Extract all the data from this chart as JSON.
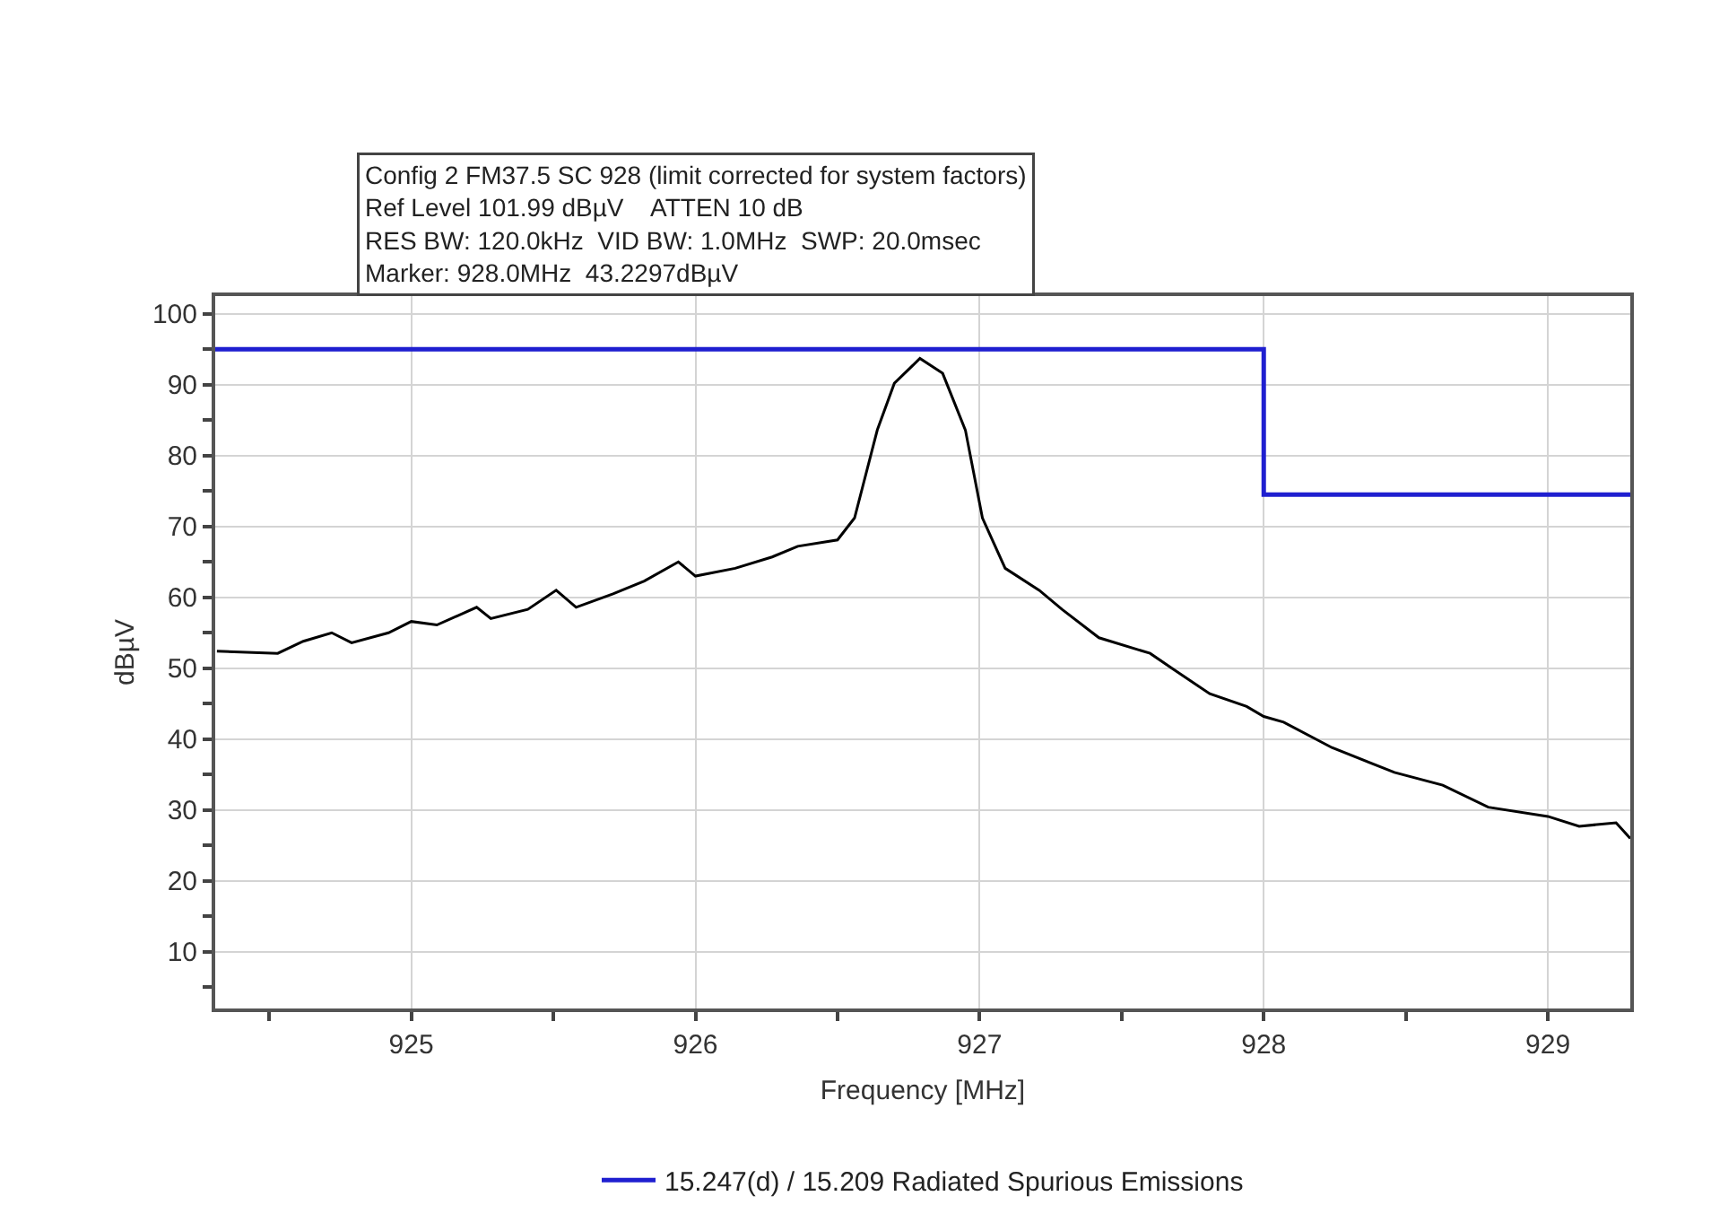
{
  "chart_data": {
    "type": "line",
    "annotations": [
      "Config 2 FM37.5 SC 928 (limit corrected for system factors)",
      "Ref Level 101.99 dBµV    ATTEN 10 dB",
      "RES BW: 120.0kHz  VID BW: 1.0MHz  SWP: 20.0msec",
      "Marker: 928.0MHz  43.2297dBµV"
    ],
    "xlabel": "Frequency [MHz]",
    "ylabel": "dBµV",
    "xlim": [
      924.31,
      929.29
    ],
    "ylim": [
      2,
      102.5
    ],
    "xticks": [
      {
        "value": 924.5,
        "label": null
      },
      925,
      {
        "value": 925.5,
        "label": null
      },
      926,
      {
        "value": 926.5,
        "label": null
      },
      927,
      {
        "value": 927.5,
        "label": null
      },
      928,
      {
        "value": 928.5,
        "label": null
      },
      929
    ],
    "yticks": [
      {
        "value": 5,
        "label": null
      },
      10,
      {
        "value": 15,
        "label": null
      },
      20,
      {
        "value": 25,
        "label": null
      },
      30,
      {
        "value": 35,
        "label": null
      },
      40,
      {
        "value": 45,
        "label": null
      },
      50,
      {
        "value": 55,
        "label": null
      },
      60,
      {
        "value": 65,
        "label": null
      },
      70,
      {
        "value": 75,
        "label": null
      },
      80,
      {
        "value": 85,
        "label": null
      },
      90,
      {
        "value": 95,
        "label": null
      },
      100
    ],
    "grid": true,
    "legend": "bottom",
    "marker": "none",
    "line_style": "solid",
    "series": [
      {
        "color": "#000000",
        "x": [
          924.316,
          924.53,
          924.62,
          924.72,
          924.79,
          924.92,
          925.0,
          925.09,
          925.23,
          925.28,
          925.41,
          925.51,
          925.58,
          925.71,
          925.82,
          925.94,
          926.0,
          926.14,
          926.27,
          926.36,
          926.5,
          926.56,
          926.64,
          926.7,
          926.79,
          926.87,
          926.95,
          927.01,
          927.09,
          927.21,
          927.29,
          927.42,
          927.6,
          927.68,
          927.81,
          927.94,
          928.0,
          928.07,
          928.24,
          928.46,
          928.63,
          928.79,
          929.0,
          929.11,
          929.24,
          929.29
        ],
        "values": [
          52.4,
          52.1,
          53.8,
          55.0,
          53.6,
          55.0,
          56.6,
          56.1,
          58.6,
          57.0,
          58.3,
          61.0,
          58.6,
          60.5,
          62.3,
          65.0,
          63.0,
          64.1,
          65.7,
          67.2,
          68.1,
          71.2,
          83.6,
          90.2,
          93.7,
          91.6,
          83.6,
          71.2,
          64.1,
          61.0,
          58.3,
          54.3,
          52.1,
          49.9,
          46.4,
          44.6,
          43.2,
          42.4,
          38.8,
          35.3,
          33.5,
          30.4,
          29.1,
          27.7,
          28.2,
          26.0
        ]
      },
      {
        "name": "15.247(d) / 15.209 Radiated Spurious Emissions",
        "color": "#1f1fd0",
        "x": [
          924.31,
          928,
          928,
          929.29
        ],
        "values": [
          95,
          95,
          74.5,
          74.5
        ]
      }
    ]
  }
}
